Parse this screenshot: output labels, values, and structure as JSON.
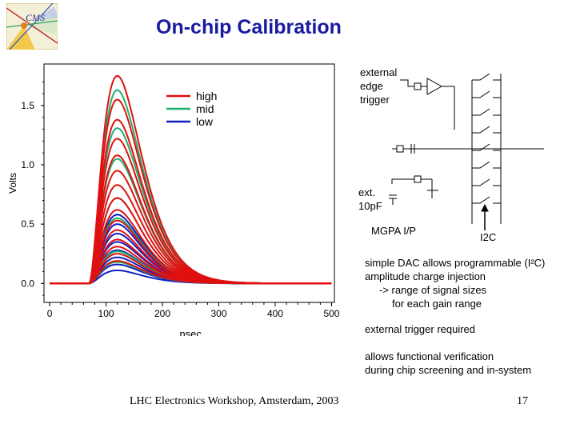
{
  "slide": {
    "title": "On-chip Calibration",
    "footer_left": "LHC Electronics Workshop, Amsterdam, 2003",
    "page_number": "17"
  },
  "logo": {
    "text": "CMS",
    "icon": "cms-logo-icon"
  },
  "circuit": {
    "labels": {
      "trigger": [
        "external",
        "edge",
        "trigger"
      ],
      "ext_cap": [
        "ext.",
        "10pF"
      ],
      "mgpa": "MGPA I/P",
      "i2c": "I2C"
    }
  },
  "notes": {
    "dac": [
      "simple DAC allows programmable (I²C)",
      "amplitude charge injection",
      "-> range of signal sizes",
      "for each gain range"
    ],
    "trigger": "external trigger required",
    "verification": [
      "allows functional verification",
      "during chip screening and in-system"
    ]
  },
  "chart_data": {
    "type": "line",
    "title": "",
    "xlabel": "nsec.",
    "ylabel": "Volts",
    "xlim": [
      -10,
      505
    ],
    "ylim": [
      -0.16,
      1.85
    ],
    "xticks": [
      0,
      100,
      200,
      300,
      400,
      500
    ],
    "yticks": [
      0.0,
      0.5,
      1.0,
      1.5
    ],
    "ytick_labels": [
      "0.0",
      "0.5",
      "1.0",
      "1.5"
    ],
    "legend": {
      "position": "top-right",
      "entries": [
        {
          "name": "high",
          "color": "#e01010"
        },
        {
          "name": "mid",
          "color": "#20b070"
        },
        {
          "name": "low",
          "color": "#1020c0"
        }
      ]
    },
    "pulse_shape": {
      "baseline": 0.0,
      "onset_ns": 70,
      "peak_ns": 120
    },
    "series": [
      {
        "name": "high",
        "color": "#e01010",
        "peaks": [
          1.75,
          1.55,
          1.38,
          1.22,
          1.08,
          0.95,
          0.83,
          0.72,
          0.62,
          0.53,
          0.45,
          0.37,
          0.31,
          0.25,
          0.19
        ]
      },
      {
        "name": "mid",
        "color": "#20b070",
        "peaks": [
          1.63,
          1.31,
          1.05,
          0.72,
          0.55,
          0.27,
          0.18
        ]
      },
      {
        "name": "low",
        "color": "#1020c0",
        "peaks": [
          0.58,
          0.5,
          0.42,
          0.35,
          0.28,
          0.22,
          0.16,
          0.11
        ]
      }
    ]
  }
}
